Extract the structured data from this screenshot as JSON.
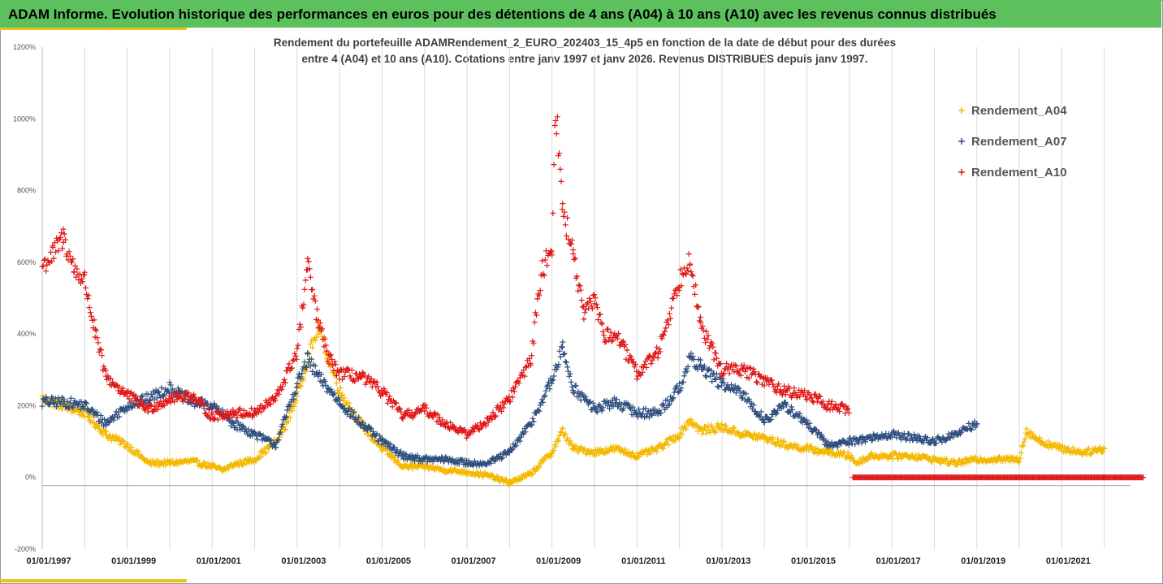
{
  "header": {
    "title": "ADAM Informe. Evolution historique des performances en euros pour des détentions de 4 ans (A04) à 10 ans (A10) avec les revenus connus distribués"
  },
  "colors": {
    "header_bg": "#5cc15c",
    "accent": "#f0c020",
    "A04": "#f4b800",
    "A07": "#2f4f7f",
    "A10": "#e01818",
    "grid": "#d9d9d9"
  },
  "chart_data": {
    "type": "scatter",
    "title_lines": [
      "Rendement du portefeuille ADAMRendement_2_EURO_202403_15_4p5  en fonction de la date de début pour des durées",
      "entre 4 (A04) et 10 ans (A10). Cotations entre janv 1997 et janv 2026. Revenus DISTRIBUES depuis janv 1997."
    ],
    "xlabel": "",
    "ylabel": "",
    "xlim": [
      "01/01/1997",
      "01/01/2023"
    ],
    "ylim": [
      -200,
      1200
    ],
    "y_ticks": [
      -200,
      0,
      200,
      400,
      600,
      800,
      1000,
      1200
    ],
    "y_tick_labels": [
      "-200%",
      "0%",
      "200%",
      "400%",
      "600%",
      "800%",
      "1000%",
      "1200%"
    ],
    "x_tick_labels": [
      "01/01/1997",
      "01/01/1999",
      "01/01/2001",
      "01/01/2003",
      "01/01/2005",
      "01/01/2007",
      "01/01/2009",
      "01/01/2011",
      "01/01/2013",
      "01/01/2015",
      "01/01/2017",
      "01/01/2019",
      "01/01/2021"
    ],
    "x_tick_years": [
      1997,
      1999,
      2001,
      2003,
      2005,
      2007,
      2009,
      2011,
      2013,
      2015,
      2017,
      2019,
      2021
    ],
    "grid": "vertical",
    "marker": "+",
    "legend_position": "top-right",
    "series": [
      {
        "name": "Rendement_A04",
        "color": "#f4b800",
        "points": [
          [
            "01/1997",
            220
          ],
          [
            "07/1997",
            200
          ],
          [
            "01/1998",
            180
          ],
          [
            "04/1998",
            150
          ],
          [
            "07/1998",
            120
          ],
          [
            "01/1999",
            90
          ],
          [
            "07/1999",
            40
          ],
          [
            "01/2000",
            40
          ],
          [
            "07/2000",
            45
          ],
          [
            "01/2001",
            30
          ],
          [
            "04/2001",
            20
          ],
          [
            "07/2001",
            35
          ],
          [
            "01/2002",
            50
          ],
          [
            "07/2002",
            100
          ],
          [
            "10/2002",
            150
          ],
          [
            "01/2003",
            230
          ],
          [
            "04/2003",
            330
          ],
          [
            "07/2003",
            420
          ],
          [
            "10/2003",
            330
          ],
          [
            "01/2004",
            240
          ],
          [
            "07/2004",
            150
          ],
          [
            "01/2005",
            80
          ],
          [
            "07/2005",
            30
          ],
          [
            "01/2006",
            30
          ],
          [
            "07/2006",
            20
          ],
          [
            "01/2007",
            15
          ],
          [
            "07/2007",
            5
          ],
          [
            "01/2008",
            -15
          ],
          [
            "07/2008",
            10
          ],
          [
            "01/2009",
            70
          ],
          [
            "04/2009",
            130
          ],
          [
            "07/2009",
            80
          ],
          [
            "01/2010",
            70
          ],
          [
            "07/2010",
            80
          ],
          [
            "01/2011",
            60
          ],
          [
            "07/2011",
            80
          ],
          [
            "01/2012",
            120
          ],
          [
            "04/2012",
            160
          ],
          [
            "07/2012",
            130
          ],
          [
            "01/2013",
            140
          ],
          [
            "07/2013",
            120
          ],
          [
            "01/2014",
            110
          ],
          [
            "07/2014",
            90
          ],
          [
            "01/2015",
            80
          ],
          [
            "07/2015",
            70
          ],
          [
            "01/2016",
            60
          ],
          [
            "03/2016",
            40
          ],
          [
            "07/2016",
            60
          ],
          [
            "01/2017",
            60
          ],
          [
            "07/2017",
            60
          ],
          [
            "01/2018",
            50
          ],
          [
            "07/2018",
            40
          ],
          [
            "01/2019",
            50
          ],
          [
            "07/2019",
            50
          ],
          [
            "01/2020",
            50
          ],
          [
            "03/2020",
            130
          ],
          [
            "07/2020",
            100
          ],
          [
            "01/2021",
            80
          ],
          [
            "07/2021",
            70
          ],
          [
            "01/2022",
            80
          ]
        ]
      },
      {
        "name": "Rendement_A07",
        "color": "#2f4f7f",
        "points": [
          [
            "01/1997",
            210
          ],
          [
            "07/1997",
            210
          ],
          [
            "01/1998",
            200
          ],
          [
            "07/1998",
            150
          ],
          [
            "01/1999",
            200
          ],
          [
            "07/1999",
            220
          ],
          [
            "01/2000",
            250
          ],
          [
            "07/2000",
            210
          ],
          [
            "01/2001",
            200
          ],
          [
            "07/2001",
            150
          ],
          [
            "01/2002",
            120
          ],
          [
            "07/2002",
            90
          ],
          [
            "01/2003",
            260
          ],
          [
            "04/2003",
            330
          ],
          [
            "07/2003",
            280
          ],
          [
            "01/2004",
            210
          ],
          [
            "07/2004",
            150
          ],
          [
            "01/2005",
            100
          ],
          [
            "07/2005",
            60
          ],
          [
            "01/2006",
            50
          ],
          [
            "07/2006",
            50
          ],
          [
            "01/2007",
            40
          ],
          [
            "07/2007",
            40
          ],
          [
            "01/2008",
            70
          ],
          [
            "07/2008",
            150
          ],
          [
            "01/2009",
            270
          ],
          [
            "04/2009",
            360
          ],
          [
            "07/2009",
            250
          ],
          [
            "01/2010",
            190
          ],
          [
            "07/2010",
            210
          ],
          [
            "01/2011",
            180
          ],
          [
            "07/2011",
            180
          ],
          [
            "01/2012",
            250
          ],
          [
            "04/2012",
            330
          ],
          [
            "07/2012",
            310
          ],
          [
            "01/2013",
            260
          ],
          [
            "07/2013",
            230
          ],
          [
            "01/2014",
            160
          ],
          [
            "07/2014",
            200
          ],
          [
            "01/2015",
            150
          ],
          [
            "07/2015",
            90
          ],
          [
            "01/2016",
            100
          ],
          [
            "07/2016",
            110
          ],
          [
            "01/2017",
            120
          ],
          [
            "07/2017",
            110
          ],
          [
            "01/2018",
            100
          ],
          [
            "07/2018",
            120
          ],
          [
            "01/2019",
            150
          ]
        ]
      },
      {
        "name": "Rendement_A10",
        "color": "#e01818",
        "points": [
          [
            "01/1997",
            590
          ],
          [
            "04/1997",
            620
          ],
          [
            "07/1997",
            670
          ],
          [
            "10/1997",
            580
          ],
          [
            "01/1998",
            550
          ],
          [
            "04/1998",
            400
          ],
          [
            "07/1998",
            280
          ],
          [
            "01/1999",
            230
          ],
          [
            "07/1999",
            190
          ],
          [
            "01/2000",
            220
          ],
          [
            "07/2000",
            230
          ],
          [
            "01/2001",
            170
          ],
          [
            "07/2001",
            180
          ],
          [
            "01/2002",
            180
          ],
          [
            "07/2002",
            220
          ],
          [
            "01/2003",
            350
          ],
          [
            "04/2003",
            590
          ],
          [
            "07/2003",
            430
          ],
          [
            "10/2003",
            330
          ],
          [
            "01/2004",
            290
          ],
          [
            "07/2004",
            280
          ],
          [
            "01/2005",
            240
          ],
          [
            "07/2005",
            170
          ],
          [
            "01/2006",
            190
          ],
          [
            "07/2006",
            150
          ],
          [
            "01/2007",
            120
          ],
          [
            "07/2007",
            160
          ],
          [
            "01/2008",
            220
          ],
          [
            "07/2008",
            330
          ],
          [
            "10/2008",
            570
          ],
          [
            "01/2009",
            650
          ],
          [
            "02/2009",
            1040
          ],
          [
            "04/2009",
            750
          ],
          [
            "07/2009",
            620
          ],
          [
            "10/2009",
            450
          ],
          [
            "01/2010",
            500
          ],
          [
            "04/2010",
            390
          ],
          [
            "07/2010",
            400
          ],
          [
            "01/2011",
            290
          ],
          [
            "07/2011",
            350
          ],
          [
            "01/2012",
            550
          ],
          [
            "04/2012",
            620
          ],
          [
            "07/2012",
            420
          ],
          [
            "01/2013",
            300
          ],
          [
            "07/2013",
            300
          ],
          [
            "01/2014",
            270
          ],
          [
            "07/2014",
            240
          ],
          [
            "01/2015",
            230
          ],
          [
            "07/2015",
            200
          ],
          [
            "01/2016",
            190
          ],
          [
            "02/2016",
            0
          ],
          [
            "01/2018",
            0
          ],
          [
            "01/2020",
            0
          ],
          [
            "01/2022",
            0
          ],
          [
            "12/2022",
            0
          ]
        ]
      }
    ]
  }
}
